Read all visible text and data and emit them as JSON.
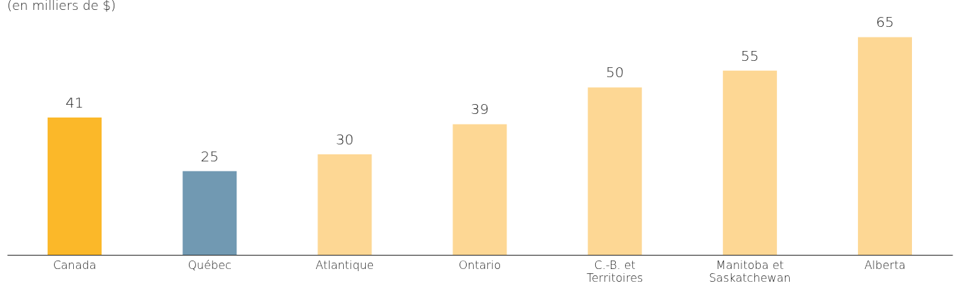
{
  "chart_data": {
    "type": "bar",
    "subtitle": "(en milliers de $)",
    "categories": [
      "Canada",
      "Québec",
      "Atlantique",
      "Ontario",
      "C.-B. et Territoires",
      "Manitoba et Saskatchewan",
      "Alberta"
    ],
    "values": [
      41,
      25,
      30,
      39,
      50,
      55,
      65
    ],
    "colors": [
      "#fbb829",
      "#7199b2",
      "#fdd794",
      "#fdd794",
      "#fdd794",
      "#fdd794",
      "#fdd794"
    ],
    "data_labels": true
  }
}
